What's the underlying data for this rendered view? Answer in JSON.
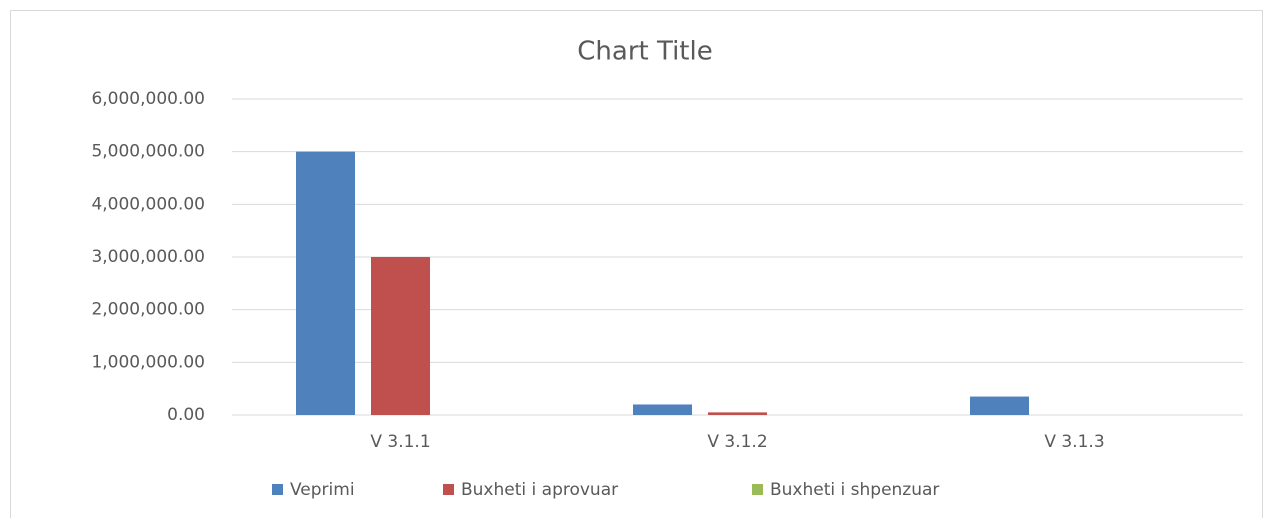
{
  "chart_data": {
    "type": "bar",
    "title": "Chart Title",
    "categories": [
      "V 3.1.1",
      "V 3.1.2",
      "V 3.1.3"
    ],
    "series": [
      {
        "name": "Veprimi",
        "color": "#4f81bd",
        "values": [
          5000000,
          200000,
          350000
        ]
      },
      {
        "name": "Buxheti i aprovuar",
        "color": "#c0504d",
        "values": [
          3000000,
          50000,
          0
        ]
      },
      {
        "name": "Buxheti i shpenzuar",
        "color": "#9bbb59",
        "values": [
          0,
          0,
          0
        ]
      }
    ],
    "ylim": [
      0,
      6000000
    ],
    "yticks": [
      {
        "value": 0,
        "label": "0.00"
      },
      {
        "value": 1000000,
        "label": "1,000,000.00"
      },
      {
        "value": 2000000,
        "label": "2,000,000.00"
      },
      {
        "value": 3000000,
        "label": "3,000,000.00"
      },
      {
        "value": 4000000,
        "label": "4,000,000.00"
      },
      {
        "value": 5000000,
        "label": "5,000,000.00"
      },
      {
        "value": 6000000,
        "label": "6,000,000.00"
      }
    ],
    "grid": true,
    "legend": "bottom"
  }
}
